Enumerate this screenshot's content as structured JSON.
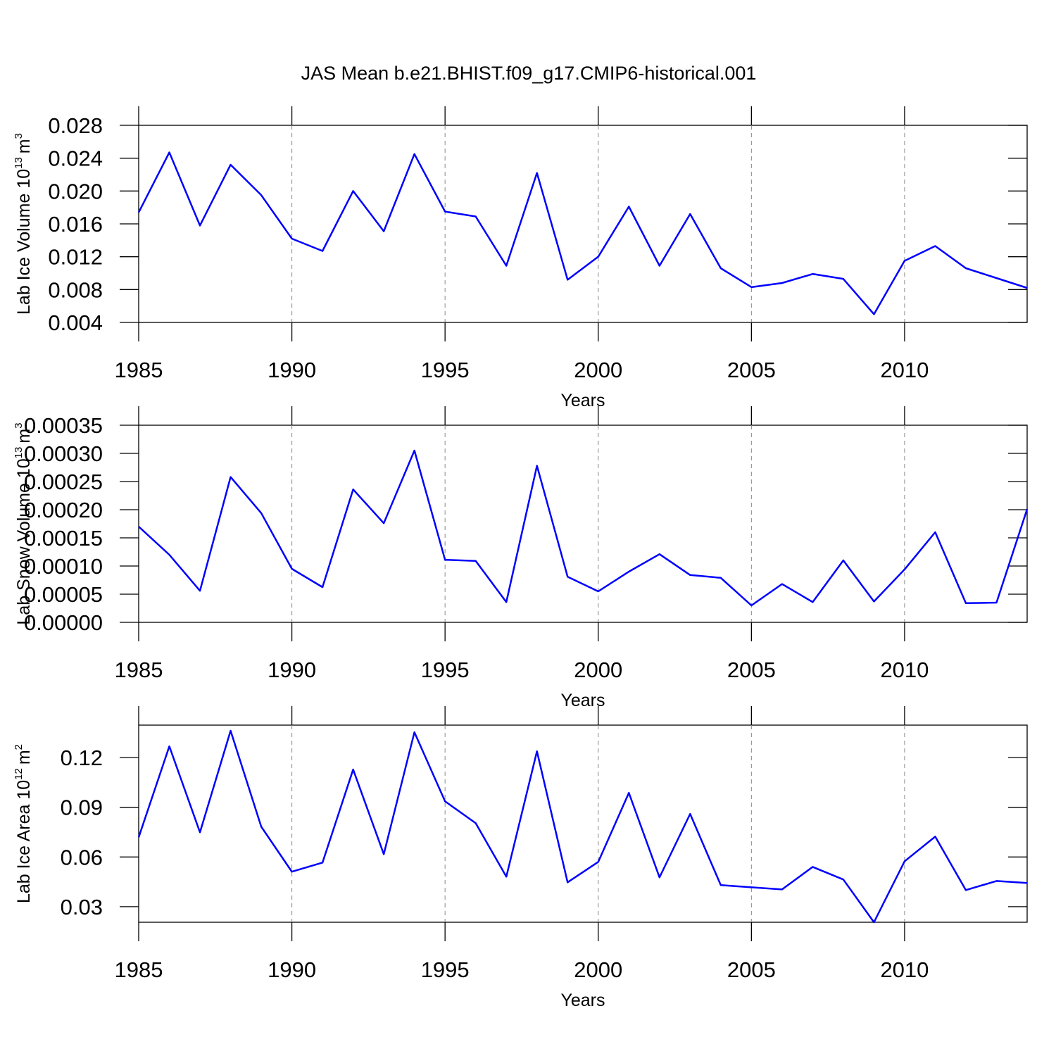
{
  "chart_data": [
    {
      "type": "line",
      "title": "JAS Mean b.e21.BHIST.f09_g17.CMIP6-historical.001",
      "x_label": "Years",
      "y_label": [
        "Lab Ice Volume 10",
        "13",
        "m",
        "3"
      ],
      "x": [
        1985,
        1986,
        1987,
        1988,
        1989,
        1990,
        1991,
        1992,
        1993,
        1994,
        1995,
        1996,
        1997,
        1998,
        1999,
        2000,
        2001,
        2002,
        2003,
        2004,
        2005,
        2006,
        2007,
        2008,
        2009,
        2010,
        2011,
        2012,
        2013,
        2014
      ],
      "series": [
        {
          "color": "#0000ff",
          "values": [
            0.0174,
            0.0247,
            0.0158,
            0.0232,
            0.0195,
            0.0142,
            0.0127,
            0.02,
            0.0151,
            0.0245,
            0.0175,
            0.0169,
            0.0109,
            0.0222,
            0.0092,
            0.012,
            0.0181,
            0.0109,
            0.0172,
            0.0106,
            0.0083,
            0.0088,
            0.0099,
            0.0093,
            0.005,
            0.0115,
            0.0133,
            0.0106,
            0.0094,
            0.0082
          ]
        }
      ],
      "xlim": [
        1985,
        2014
      ],
      "xticks": [
        1985,
        1990,
        1995,
        2000,
        2005,
        2010
      ],
      "ylim": [
        0.004,
        0.028
      ],
      "yticks": [
        0.004,
        0.008,
        0.012,
        0.016,
        {
          "value": 0.02,
          "label": "0.020"
        },
        0.024,
        0.028
      ],
      "grid": "x"
    },
    {
      "type": "line",
      "x_label": "Years",
      "y_label": [
        "Lab Snow Volume 10",
        "13",
        "m",
        "3"
      ],
      "x": [
        1985,
        1986,
        1987,
        1988,
        1989,
        1990,
        1991,
        1992,
        1993,
        1994,
        1995,
        1996,
        1997,
        1998,
        1999,
        2000,
        2001,
        2002,
        2003,
        2004,
        2005,
        2006,
        2007,
        2008,
        2009,
        2010,
        2011,
        2012,
        2013,
        2014
      ],
      "series": [
        {
          "color": "#0000ff",
          "values": [
            0.00017,
            0.00012,
            5.6e-05,
            0.000258,
            0.000194,
            9.5e-05,
            6.25e-05,
            0.000236,
            0.000176,
            0.000305,
            0.000111,
            0.000109,
            3.6e-05,
            0.000278,
            8.1e-05,
            5.5e-05,
            9e-05,
            0.000121,
            8.4e-05,
            7.9e-05,
            3e-05,
            6.8e-05,
            3.6e-05,
            0.00011,
            3.7e-05,
            9.4e-05,
            0.00016,
            3.4e-05,
            3.5e-05,
            0.000201
          ]
        }
      ],
      "xlim": [
        1985,
        2014
      ],
      "xticks": [
        1985,
        1990,
        1995,
        2000,
        2005,
        2010
      ],
      "ylim": [
        0,
        0.00035
      ],
      "yticks": [
        {
          "value": 0,
          "label": "0.00000"
        },
        5e-05,
        {
          "value": 0.0001,
          "label": "0.00010"
        },
        0.00015,
        {
          "value": 0.0002,
          "label": "0.00020"
        },
        0.00025,
        {
          "value": 0.0003,
          "label": "0.00030"
        },
        0.00035
      ],
      "grid": "x"
    },
    {
      "type": "line",
      "x_label": "Years",
      "y_label": [
        "Lab Ice Area 10",
        "12",
        "m",
        "2"
      ],
      "x": [
        1985,
        1986,
        1987,
        1988,
        1989,
        1990,
        1991,
        1992,
        1993,
        1994,
        1995,
        1996,
        1997,
        1998,
        1999,
        2000,
        2001,
        2002,
        2003,
        2004,
        2005,
        2006,
        2007,
        2008,
        2009,
        2010,
        2011,
        2012,
        2013,
        2014
      ],
      "series": [
        {
          "color": "#0000ff",
          "values": [
            0.0719,
            0.1268,
            0.0749,
            0.1362,
            0.0783,
            0.0511,
            0.0566,
            0.1128,
            0.0617,
            0.1353,
            0.0936,
            0.0804,
            0.0481,
            0.1238,
            0.0447,
            0.057,
            0.0987,
            0.0477,
            0.086,
            0.043,
            0.0417,
            0.0404,
            0.054,
            0.0464,
            0.0206,
            0.0574,
            0.0723,
            0.04,
            0.0455,
            0.0443
          ]
        }
      ],
      "xlim": [
        1985,
        2014
      ],
      "xticks": [
        1985,
        1990,
        1995,
        2000,
        2005,
        2010
      ],
      "ylim": [
        0.0206,
        0.1396
      ],
      "yticks": [
        0.03,
        0.06,
        0.09,
        0.12
      ],
      "grid": "x"
    }
  ]
}
